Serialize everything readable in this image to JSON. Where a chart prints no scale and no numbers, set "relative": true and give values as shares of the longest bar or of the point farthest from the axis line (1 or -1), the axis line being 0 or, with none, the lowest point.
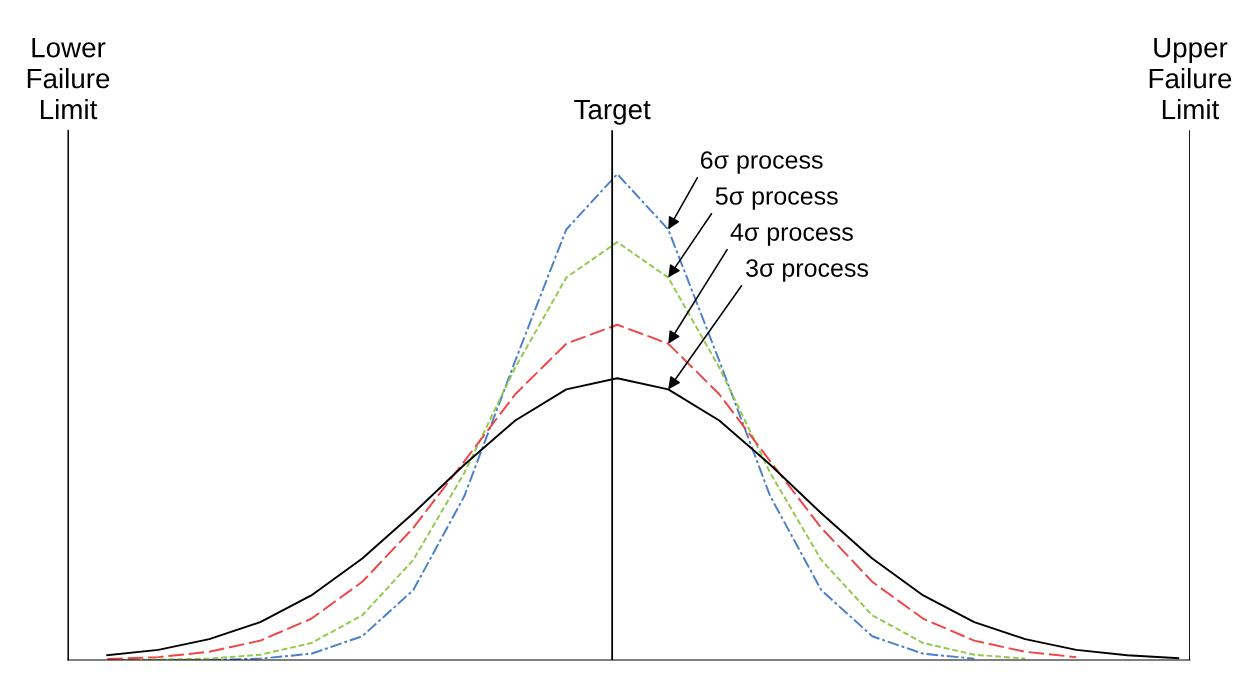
{
  "chart_data": {
    "type": "line",
    "relative": true,
    "categories": [
      null,
      null,
      null,
      null,
      null,
      null,
      null,
      null,
      null,
      null,
      null,
      null,
      null,
      null,
      null,
      null,
      null,
      null,
      null,
      null,
      null,
      null
    ],
    "grid": false,
    "series": [
      {
        "color": "#4a7fc9",
        "line_style": "dashdot",
        "values": [
          0,
          0,
          0,
          0.003,
          0.013,
          0.049,
          0.144,
          0.337,
          0.616,
          0.886,
          1,
          0.886,
          0.616,
          0.337,
          0.144,
          0.049,
          0.013,
          0.003,
          null,
          null,
          null,
          null
        ]
      },
      {
        "color": "#92c94a",
        "line_style": "dashed",
        "values": [
          0,
          0.001,
          0.003,
          0.011,
          0.035,
          0.092,
          0.206,
          0.385,
          0.602,
          0.787,
          0.86,
          0.787,
          0.602,
          0.385,
          0.206,
          0.092,
          0.035,
          0.011,
          0.003,
          null,
          null,
          null
        ]
      },
      {
        "color": "#f04545",
        "line_style": "longdash",
        "values": [
          0.002,
          0.006,
          0.017,
          0.04,
          0.085,
          0.161,
          0.272,
          0.409,
          0.547,
          0.651,
          0.69,
          0.651,
          0.547,
          0.409,
          0.272,
          0.161,
          0.085,
          0.04,
          0.017,
          0.006,
          null,
          null
        ]
      },
      {
        "color": "#000000",
        "line_style": "solid",
        "values": [
          0.01,
          0.021,
          0.043,
          0.078,
          0.133,
          0.209,
          0.302,
          0.402,
          0.493,
          0.557,
          0.58,
          0.557,
          0.493,
          0.402,
          0.302,
          0.209,
          0.133,
          0.078,
          0.043,
          0.021,
          0.01,
          0.004
        ]
      }
    ],
    "annotations": [
      "Lower Failure Limit",
      "Target",
      "Upper Failure Limit",
      "6σ process",
      "5σ process",
      "4σ process",
      "3σ process"
    ]
  }
}
